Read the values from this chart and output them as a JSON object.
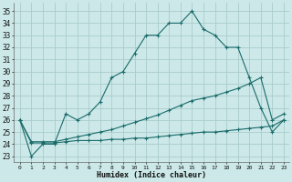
{
  "background_color": "#cce8e8",
  "grid_color": "#aacccc",
  "line_color": "#1a6b6b",
  "xlabel": "Humidex (Indice chaleur)",
  "xlim": [
    -0.5,
    23.5
  ],
  "ylim": [
    22.5,
    35.7
  ],
  "xticks": [
    0,
    1,
    2,
    3,
    4,
    5,
    6,
    7,
    8,
    9,
    10,
    11,
    12,
    13,
    14,
    15,
    16,
    17,
    18,
    19,
    20,
    21,
    22,
    23
  ],
  "yticks": [
    23,
    24,
    25,
    26,
    27,
    28,
    29,
    30,
    31,
    32,
    33,
    34,
    35
  ],
  "series1_x": [
    0,
    1,
    2,
    3,
    4,
    5,
    6,
    7,
    8,
    9,
    10,
    11,
    12,
    13,
    14,
    15,
    16,
    17,
    18,
    19,
    20,
    21,
    22,
    23
  ],
  "series1_y": [
    26,
    23,
    24,
    24,
    26.5,
    26,
    26.5,
    27.5,
    29.5,
    30,
    31.5,
    33,
    33,
    34,
    34,
    35,
    33.5,
    33,
    32,
    32,
    29.5,
    27,
    25,
    26
  ],
  "series2_x": [
    0,
    1,
    2,
    3,
    4,
    5,
    6,
    7,
    8,
    9,
    10,
    11,
    12,
    13,
    14,
    15,
    16,
    17,
    18,
    19,
    20,
    21,
    22,
    23
  ],
  "series2_y": [
    26,
    24.2,
    24.2,
    24.2,
    24.4,
    24.6,
    24.8,
    25.0,
    25.2,
    25.5,
    25.8,
    26.1,
    26.4,
    26.8,
    27.2,
    27.6,
    27.8,
    28.0,
    28.3,
    28.6,
    29.0,
    29.5,
    26.0,
    26.5
  ],
  "series3_x": [
    0,
    1,
    2,
    3,
    4,
    5,
    6,
    7,
    8,
    9,
    10,
    11,
    12,
    13,
    14,
    15,
    16,
    17,
    18,
    19,
    20,
    21,
    22,
    23
  ],
  "series3_y": [
    26,
    24.1,
    24.1,
    24.1,
    24.2,
    24.3,
    24.3,
    24.3,
    24.4,
    24.4,
    24.5,
    24.5,
    24.6,
    24.7,
    24.8,
    24.9,
    25.0,
    25.0,
    25.1,
    25.2,
    25.3,
    25.4,
    25.5,
    26.0
  ]
}
